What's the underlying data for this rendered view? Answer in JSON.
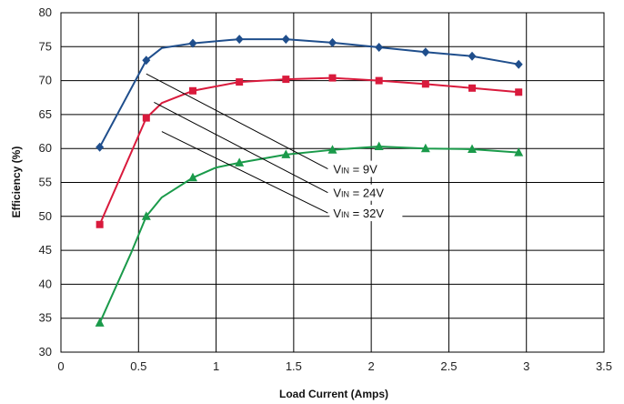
{
  "chart_data": {
    "type": "line",
    "xlabel": "Load Current (Amps)",
    "ylabel": "Efficiency (%)",
    "xlim": [
      0,
      3.5
    ],
    "ylim": [
      30,
      80
    ],
    "xticks": [
      "0",
      "0.5",
      "1",
      "1.5",
      "2",
      "2.5",
      "3",
      "3.5"
    ],
    "yticks": [
      "30",
      "35",
      "40",
      "45",
      "50",
      "55",
      "60",
      "65",
      "70",
      "75",
      "80"
    ],
    "grid": true,
    "series": [
      {
        "name": "VIN = 9V",
        "name_main": "V",
        "name_sub": "IN",
        "name_rest": " = 9V",
        "color": "#1f4e8c",
        "marker": "diamond",
        "x": [
          0.25,
          0.55,
          0.65,
          0.85,
          1.15,
          1.45,
          1.75,
          2.05,
          2.35,
          2.65,
          2.95
        ],
        "y": [
          60.2,
          73.0,
          74.8,
          75.5,
          76.1,
          76.1,
          75.6,
          74.9,
          74.2,
          73.6,
          72.4
        ],
        "markers": [
          true,
          true,
          false,
          true,
          true,
          true,
          true,
          true,
          true,
          true,
          true
        ]
      },
      {
        "name": "VIN = 24V",
        "name_main": "V",
        "name_sub": "IN",
        "name_rest": " = 24V",
        "color": "#d91a3c",
        "marker": "square",
        "x": [
          0.25,
          0.55,
          0.65,
          0.85,
          1.15,
          1.45,
          1.75,
          2.05,
          2.35,
          2.65,
          2.95
        ],
        "y": [
          48.8,
          64.5,
          66.7,
          68.5,
          69.8,
          70.2,
          70.4,
          70.0,
          69.5,
          68.9,
          68.3
        ],
        "markers": [
          true,
          true,
          false,
          true,
          true,
          true,
          true,
          true,
          true,
          true,
          true
        ]
      },
      {
        "name": "VIN = 32V",
        "name_main": "V",
        "name_sub": "IN",
        "name_rest": " = 32V",
        "color": "#1a9a4a",
        "marker": "triangle",
        "x": [
          0.25,
          0.45,
          0.55,
          0.65,
          0.85,
          1.0,
          1.15,
          1.45,
          1.75,
          2.05,
          2.35,
          2.65,
          2.95
        ],
        "y": [
          34.3,
          44.5,
          50.0,
          52.8,
          55.7,
          57.2,
          57.9,
          59.1,
          59.8,
          60.3,
          60.0,
          59.9,
          59.4
        ],
        "markers": [
          true,
          false,
          true,
          false,
          true,
          false,
          true,
          true,
          true,
          true,
          true,
          true,
          true
        ]
      }
    ],
    "annotations": [
      {
        "series": 0,
        "text": "VIN = 9V",
        "from": [
          0.55,
          71.0
        ],
        "to": [
          1.72,
          57.0
        ]
      },
      {
        "series": 1,
        "text": "VIN = 24V",
        "from": [
          0.6,
          66.8
        ],
        "to": [
          1.72,
          53.5
        ]
      },
      {
        "series": 2,
        "text": "VIN = 32V",
        "from": [
          0.65,
          62.5
        ],
        "to": [
          1.72,
          50.5
        ]
      }
    ]
  }
}
